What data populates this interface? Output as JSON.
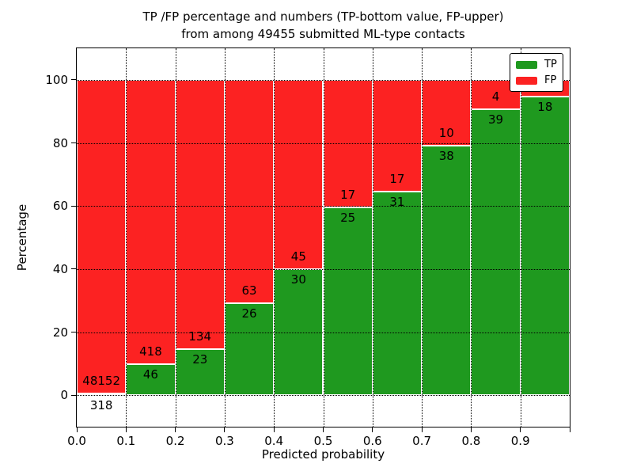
{
  "chart_data": {
    "type": "bar",
    "stacked": true,
    "title_line1": "TP /FP percentage and numbers (TP-bottom value, FP-upper)",
    "title_line2": "from among 49455 submitted ML-type contacts",
    "xlabel": "Predicted probability",
    "ylabel": "Percentage",
    "x_tick_labels": [
      "0.0",
      "0.1",
      "0.2",
      "0.3",
      "0.4",
      "0.5",
      "0.6",
      "0.7",
      "0.8",
      "0.9"
    ],
    "y_tick_values": [
      0,
      20,
      40,
      60,
      80,
      100
    ],
    "ylim": [
      -10,
      110
    ],
    "xlim": [
      0.0,
      1.0
    ],
    "bin_width": 0.1,
    "grid": "dotted",
    "legend_position": "upper-right",
    "colors": {
      "tp": "#1f991f",
      "fp": "#fc2222",
      "bar_edge": "#ffffff",
      "grid": "#000000"
    },
    "legend": [
      {
        "label": "TP",
        "color": "#1f991f"
      },
      {
        "label": "FP",
        "color": "#fc2222"
      }
    ],
    "bars": [
      {
        "bin": "0.0-0.1",
        "tp": 318,
        "fp": 48152,
        "tp_pct": 0.66,
        "tp_label": "318",
        "fp_label": "48152",
        "tp_label_below_axis": true
      },
      {
        "bin": "0.1-0.2",
        "tp": 46,
        "fp": 418,
        "tp_pct": 9.91,
        "tp_label": "46",
        "fp_label": "418"
      },
      {
        "bin": "0.2-0.3",
        "tp": 23,
        "fp": 134,
        "tp_pct": 14.65,
        "tp_label": "23",
        "fp_label": "134"
      },
      {
        "bin": "0.3-0.4",
        "tp": 26,
        "fp": 63,
        "tp_pct": 29.21,
        "tp_label": "26",
        "fp_label": "63"
      },
      {
        "bin": "0.4-0.5",
        "tp": 30,
        "fp": 45,
        "tp_pct": 40.0,
        "tp_label": "30",
        "fp_label": "45"
      },
      {
        "bin": "0.5-0.6",
        "tp": 25,
        "fp": 17,
        "tp_pct": 59.52,
        "tp_label": "25",
        "fp_label": "17"
      },
      {
        "bin": "0.6-0.7",
        "tp": 31,
        "fp": 17,
        "tp_pct": 64.58,
        "tp_label": "31",
        "fp_label": "17"
      },
      {
        "bin": "0.7-0.8",
        "tp": 38,
        "fp": 10,
        "tp_pct": 79.17,
        "tp_label": "38",
        "fp_label": "10"
      },
      {
        "bin": "0.8-0.9",
        "tp": 39,
        "fp": 4,
        "tp_pct": 90.7,
        "tp_label": "39",
        "fp_label": "4"
      },
      {
        "bin": "0.9-1.0",
        "tp": 18,
        "fp": null,
        "tp_pct": 94.74,
        "tp_label": "18",
        "fp_label": ""
      }
    ]
  }
}
